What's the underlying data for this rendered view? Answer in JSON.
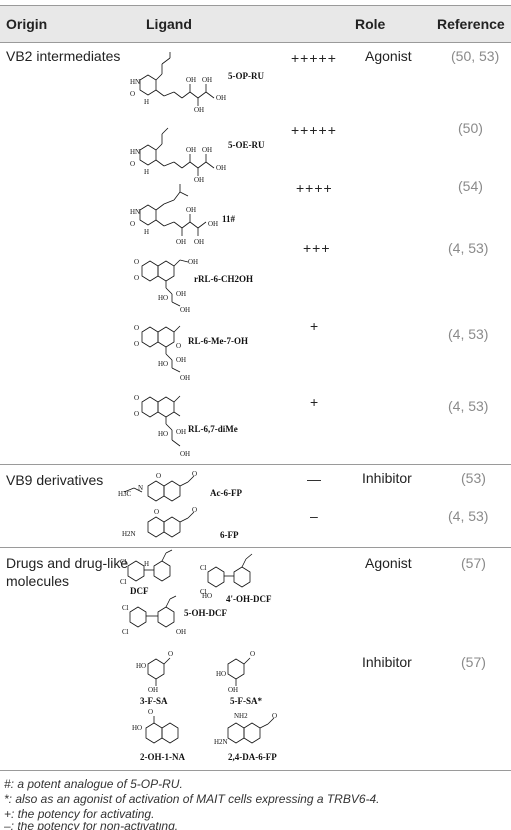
{
  "headers": {
    "origin": "Origin",
    "ligand": "Ligand",
    "role": "Role",
    "reference": "Reference"
  },
  "groups": [
    {
      "origin": "VB2 intermediates"
    },
    {
      "origin": "VB9 derivatives"
    },
    {
      "origin_line1": "Drugs and drug-like",
      "origin_line2": "molecules"
    }
  ],
  "rows": [
    {
      "ligand": "5-OP-RU",
      "potency": "+++++",
      "role": "Agonist",
      "reference": "(50, 53)"
    },
    {
      "ligand": "5-OE-RU",
      "potency": "+++++",
      "role": "",
      "reference": "(50)"
    },
    {
      "ligand": "11#",
      "potency": "++++",
      "role": "",
      "reference": "(54)"
    },
    {
      "ligand": "rRL-6-CH2OH",
      "potency": "+++",
      "role": "",
      "reference": "(4, 53)"
    },
    {
      "ligand": "RL-6-Me-7-OH",
      "potency": "+",
      "role": "",
      "reference": "(4, 53)"
    },
    {
      "ligand": "RL-6,7-diMe",
      "potency": "+",
      "role": "",
      "reference": "(4, 53)"
    },
    {
      "ligand": "Ac-6-FP",
      "potency": "—",
      "role": "Inhibitor",
      "reference": "(53)"
    },
    {
      "ligand": "6-FP",
      "potency": "–",
      "role": "",
      "reference": "(4, 53)"
    },
    {
      "ligands": [
        "DCF",
        "4'-OH-DCF",
        "5-OH-DCF"
      ],
      "potency": "",
      "role": "Agonist",
      "reference": "(57)"
    },
    {
      "ligands": [
        "3-F-SA",
        "5-F-SA*",
        "2-OH-1-NA",
        "2,4-DA-6-FP"
      ],
      "potency": "",
      "role": "Inhibitor",
      "reference": "(57)"
    }
  ],
  "footnotes": [
    "#: a potent analogue of 5-OP-RU.",
    "*: also as an agonist of activation of MAIT cells expressing a TRBV6-4.",
    "+: the potency for activating.",
    "–: the potency for non-activating."
  ]
}
